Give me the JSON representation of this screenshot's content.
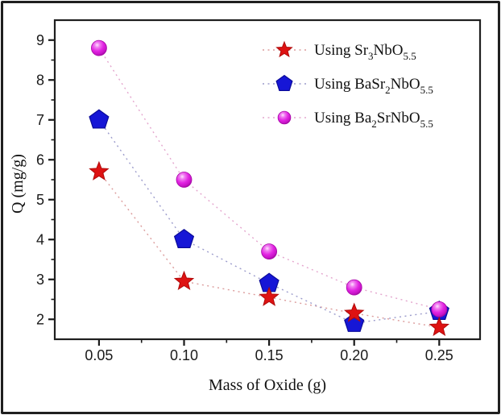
{
  "figure": {
    "kind": "adsorption-capacity-plot",
    "border_color": "#1f1f1f",
    "background": "#ffffff"
  },
  "colors": {
    "axis": "#1a1a1a",
    "frame": "#1f1f1f",
    "text": "#111111",
    "red_marker": "#de1212",
    "red_edge": "#b00a0a",
    "blue_marker": "#1616d6",
    "blue_edge": "#0b0b99",
    "magenta_marker": "#e224e2",
    "magenta_edge": "#a708a7"
  },
  "chart_data": {
    "type": "scatter",
    "title": "",
    "xlabel": "Mass of Oxide (g)",
    "ylabel": "Q (mg/g)",
    "grid": false,
    "legend_position": "upper-right-inside",
    "line_style": "dotted",
    "x": [
      0.05,
      0.1,
      0.15,
      0.2,
      0.25
    ],
    "xlim": [
      0.024,
      0.274
    ],
    "ylim": [
      1.5,
      9.5
    ],
    "x_major_ticks": [
      0.05,
      0.1,
      0.15,
      0.2,
      0.25
    ],
    "x_tick_labels": [
      "0.05",
      "0.10",
      "0.15",
      "0.20",
      "0.25"
    ],
    "x_minor_ticks": [
      0.075,
      0.125,
      0.175,
      0.225
    ],
    "y_major_ticks": [
      2,
      3,
      4,
      5,
      6,
      7,
      8,
      9
    ],
    "y_tick_labels": [
      "2",
      "3",
      "4",
      "5",
      "6",
      "7",
      "8",
      "9"
    ],
    "y_minor_ticks": [
      2.5,
      3.5,
      4.5,
      5.5,
      6.5,
      7.5,
      8.5
    ],
    "series": [
      {
        "name": "Using Sr3NbO5.5",
        "label_parts": [
          {
            "t": "Using Sr"
          },
          {
            "t": "3",
            "sub": true
          },
          {
            "t": "NbO"
          },
          {
            "t": "5.5",
            "sub": true
          }
        ],
        "marker": "star",
        "marker_color": "#de1212",
        "marker_edge": "#b00a0a",
        "line_color": "#dc9c9c",
        "values": [
          5.7,
          2.95,
          2.55,
          2.15,
          1.8
        ]
      },
      {
        "name": "Using BaSr2NbO5.5",
        "label_parts": [
          {
            "t": "Using BaSr"
          },
          {
            "t": "2",
            "sub": true
          },
          {
            "t": "NbO"
          },
          {
            "t": "5.5",
            "sub": true
          }
        ],
        "marker": "pentagon",
        "marker_color": "#1616d6",
        "marker_edge": "#0b0b99",
        "line_color": "#9c9ccc",
        "values": [
          7.0,
          4.0,
          2.9,
          1.9,
          2.2
        ]
      },
      {
        "name": "Using Ba2SrNbO5.5",
        "label_parts": [
          {
            "t": "Using Ba"
          },
          {
            "t": "2",
            "sub": true
          },
          {
            "t": "SrNbO"
          },
          {
            "t": "5.5",
            "sub": true
          }
        ],
        "marker": "sphere",
        "marker_color": "#e224e2",
        "marker_edge": "#a708a7",
        "line_color": "#e4a6ce",
        "values": [
          8.8,
          5.5,
          3.7,
          2.8,
          2.25
        ]
      }
    ]
  }
}
